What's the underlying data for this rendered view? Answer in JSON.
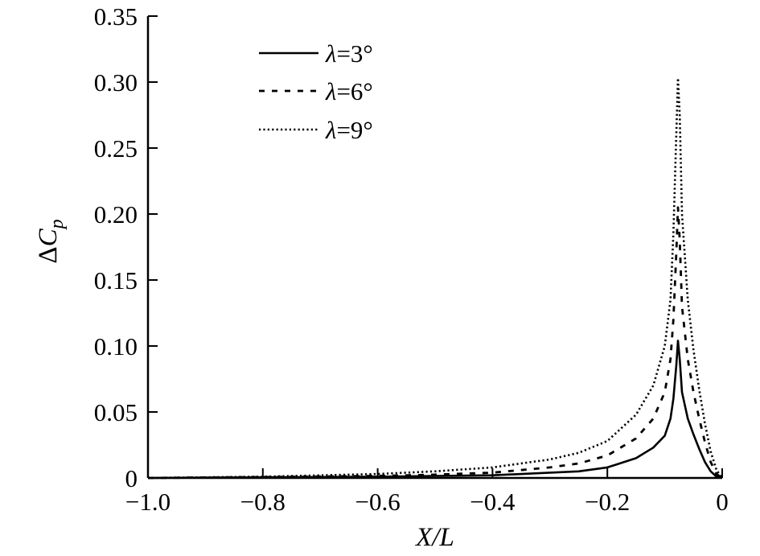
{
  "chart_data": {
    "type": "line",
    "xlabel": "X/L",
    "ylabel": "ΔC_p",
    "xlim": [
      -1.0,
      0
    ],
    "ylim": [
      0,
      0.35
    ],
    "x_ticks": [
      -1.0,
      -0.8,
      -0.6,
      -0.4,
      -0.2,
      0
    ],
    "x_tick_labels": [
      "−1.0",
      "−0.8",
      "−0.6",
      "−0.4",
      "−0.2",
      "0"
    ],
    "y_ticks": [
      0,
      0.05,
      0.1,
      0.15,
      0.2,
      0.25,
      0.3,
      0.35
    ],
    "y_tick_labels": [
      "0",
      "0.05",
      "0.10",
      "0.15",
      "0.20",
      "0.25",
      "0.30",
      "0.35"
    ],
    "grid": false,
    "legend_position": "top-left",
    "series": [
      {
        "name": "λ=3°",
        "style": "solid",
        "x": [
          -1.0,
          -0.8,
          -0.6,
          -0.5,
          -0.4,
          -0.3,
          -0.25,
          -0.2,
          -0.15,
          -0.12,
          -0.1,
          -0.09,
          -0.085,
          -0.08,
          -0.077,
          -0.074,
          -0.07,
          -0.06,
          -0.05,
          -0.04,
          -0.03,
          -0.02,
          -0.01,
          0
        ],
        "y": [
          0.0,
          0.0005,
          0.001,
          0.0015,
          0.002,
          0.004,
          0.005,
          0.008,
          0.015,
          0.023,
          0.032,
          0.045,
          0.06,
          0.085,
          0.104,
          0.09,
          0.065,
          0.045,
          0.033,
          0.022,
          0.012,
          0.005,
          0.001,
          0.0
        ]
      },
      {
        "name": "λ=6°",
        "style": "dashed",
        "x": [
          -1.0,
          -0.8,
          -0.6,
          -0.5,
          -0.4,
          -0.3,
          -0.25,
          -0.2,
          -0.15,
          -0.12,
          -0.1,
          -0.09,
          -0.085,
          -0.08,
          -0.077,
          -0.074,
          -0.07,
          -0.06,
          -0.05,
          -0.04,
          -0.03,
          -0.02,
          -0.01,
          0
        ],
        "y": [
          0.0,
          0.0007,
          0.0015,
          0.0025,
          0.004,
          0.008,
          0.011,
          0.017,
          0.03,
          0.045,
          0.065,
          0.09,
          0.12,
          0.17,
          0.205,
          0.18,
          0.13,
          0.09,
          0.065,
          0.045,
          0.027,
          0.012,
          0.003,
          0.0
        ]
      },
      {
        "name": "λ=9°",
        "style": "dotted",
        "x": [
          -1.0,
          -0.8,
          -0.6,
          -0.5,
          -0.4,
          -0.3,
          -0.25,
          -0.2,
          -0.15,
          -0.12,
          -0.1,
          -0.09,
          -0.085,
          -0.08,
          -0.077,
          -0.074,
          -0.07,
          -0.06,
          -0.05,
          -0.04,
          -0.03,
          -0.02,
          -0.01,
          0
        ],
        "y": [
          0.0,
          0.001,
          0.003,
          0.005,
          0.008,
          0.014,
          0.019,
          0.028,
          0.048,
          0.07,
          0.1,
          0.135,
          0.185,
          0.26,
          0.303,
          0.275,
          0.2,
          0.135,
          0.097,
          0.067,
          0.041,
          0.02,
          0.006,
          0.0
        ]
      }
    ]
  }
}
